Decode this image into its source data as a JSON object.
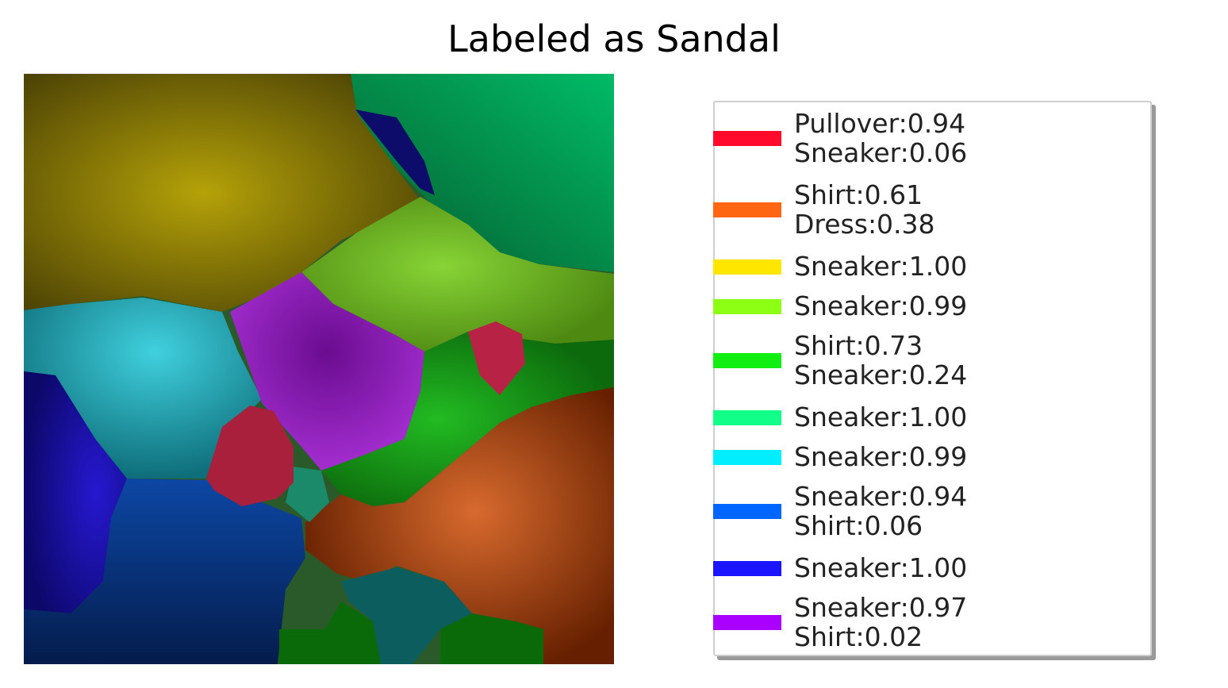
{
  "figure": {
    "title": "Labeled as Sandal"
  },
  "segments": [
    {
      "name": "pullover",
      "color": "#ff0a2a"
    },
    {
      "name": "shirt-dress",
      "color": "#ff6611"
    },
    {
      "name": "sneaker-yellow",
      "color": "#ffe600"
    },
    {
      "name": "sneaker-lime",
      "color": "#8cff14"
    },
    {
      "name": "shirt-sneaker",
      "color": "#11ee11"
    },
    {
      "name": "sneaker-spring",
      "color": "#11ff88"
    },
    {
      "name": "sneaker-cyan",
      "color": "#00eeff"
    },
    {
      "name": "sneaker-shirt-azure",
      "color": "#0066ff"
    },
    {
      "name": "sneaker-blue",
      "color": "#1a14ff"
    },
    {
      "name": "sneaker-shirt-violet",
      "color": "#aa00ff"
    }
  ],
  "legend": {
    "items": [
      {
        "color": "#ff0a2a",
        "lines": [
          "Pullover:0.94",
          "Sneaker:0.06"
        ]
      },
      {
        "color": "#ff6611",
        "lines": [
          "Shirt:0.61",
          "Dress:0.38"
        ]
      },
      {
        "color": "#ffe600",
        "lines": [
          "Sneaker:1.00"
        ]
      },
      {
        "color": "#8cff14",
        "lines": [
          "Sneaker:0.99"
        ]
      },
      {
        "color": "#11ee11",
        "lines": [
          "Shirt:0.73",
          "Sneaker:0.24"
        ]
      },
      {
        "color": "#11ff88",
        "lines": [
          "Sneaker:1.00"
        ]
      },
      {
        "color": "#00eeff",
        "lines": [
          "Sneaker:0.99"
        ]
      },
      {
        "color": "#0066ff",
        "lines": [
          "Sneaker:0.94",
          "Shirt:0.06"
        ]
      },
      {
        "color": "#1a14ff",
        "lines": [
          "Sneaker:1.00"
        ]
      },
      {
        "color": "#aa00ff",
        "lines": [
          "Sneaker:0.97",
          "Shirt:0.02"
        ]
      }
    ]
  }
}
